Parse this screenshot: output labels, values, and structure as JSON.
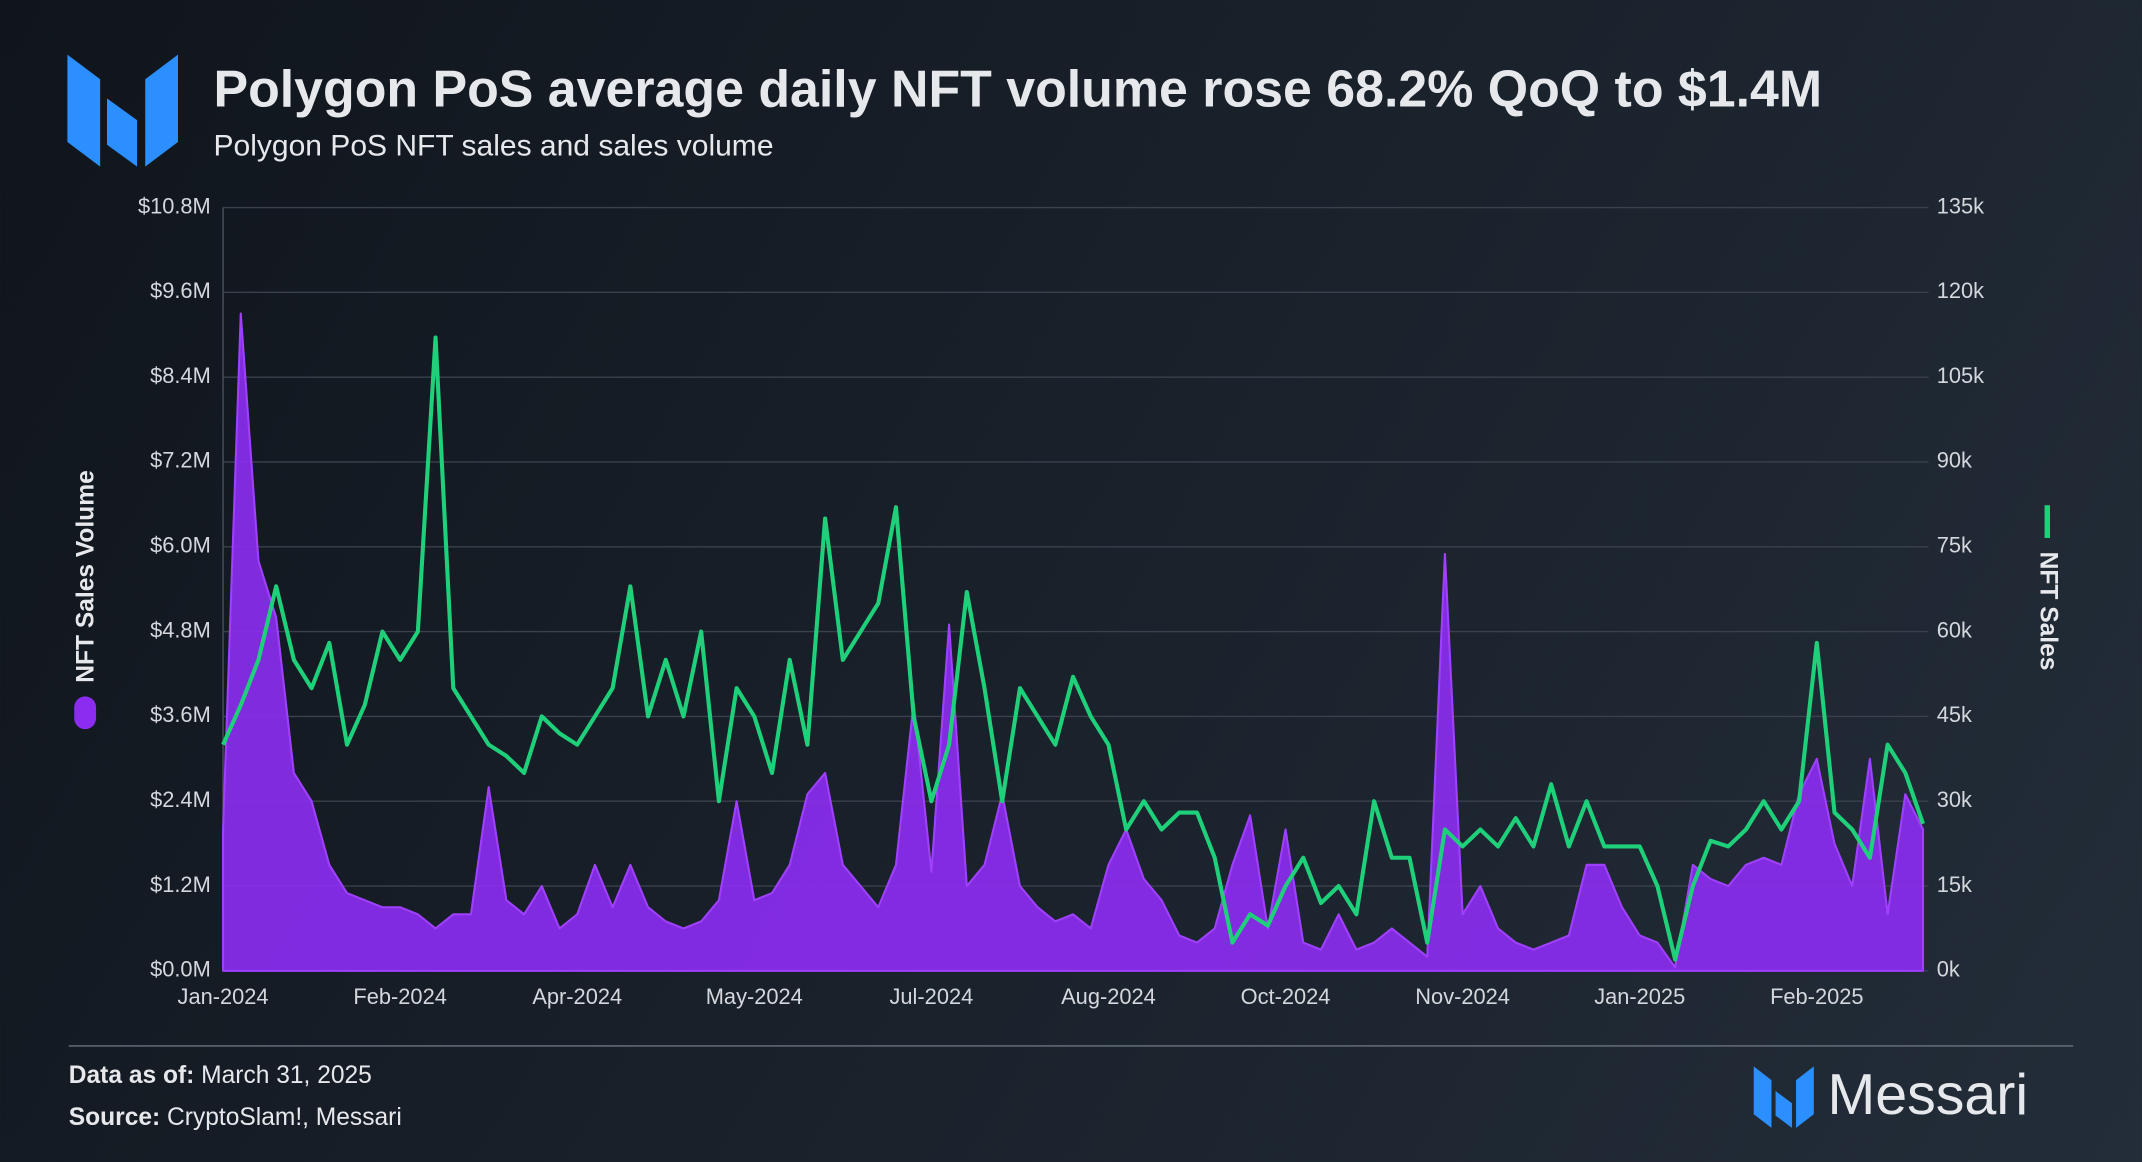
{
  "chart_data": {
    "type": "area-line",
    "title": "Polygon PoS average daily NFT volume rose 68.2% QoQ to $1.4M",
    "subtitle": "Polygon PoS NFT sales and sales volume",
    "categories": [
      "Jan-2024",
      null,
      null,
      null,
      null,
      null,
      null,
      null,
      null,
      null,
      "Feb-2024",
      null,
      null,
      null,
      null,
      null,
      null,
      null,
      null,
      null,
      "Apr-2024",
      null,
      null,
      null,
      null,
      null,
      null,
      null,
      null,
      null,
      "May-2024",
      null,
      null,
      null,
      null,
      null,
      null,
      null,
      null,
      null,
      "Jul-2024",
      null,
      null,
      null,
      null,
      null,
      null,
      null,
      null,
      null,
      "Aug-2024",
      null,
      null,
      null,
      null,
      null,
      null,
      null,
      null,
      null,
      "Oct-2024",
      null,
      null,
      null,
      null,
      null,
      null,
      null,
      null,
      null,
      "Nov-2024",
      null,
      null,
      null,
      null,
      null,
      null,
      null,
      null,
      null,
      "Jan-2025",
      null,
      null,
      null,
      null,
      null,
      null,
      null,
      null,
      null,
      "Feb-2025",
      null,
      null,
      null,
      null,
      null,
      null
    ],
    "series": [
      {
        "name": "NFT Sales Volume",
        "color": "#8b2cf0",
        "axis": "y",
        "values": [
          2.0,
          9.3,
          5.8,
          5.0,
          2.8,
          2.4,
          1.5,
          1.1,
          1.0,
          0.9,
          0.9,
          0.8,
          0.6,
          0.8,
          0.8,
          2.6,
          1.0,
          0.8,
          1.2,
          0.6,
          0.8,
          1.5,
          0.9,
          1.5,
          0.9,
          0.7,
          0.6,
          0.7,
          1.0,
          2.4,
          1.0,
          1.1,
          1.5,
          2.5,
          2.8,
          1.5,
          1.2,
          0.9,
          1.5,
          3.8,
          1.4,
          4.9,
          1.2,
          1.5,
          2.5,
          1.2,
          0.9,
          0.7,
          0.8,
          0.6,
          1.5,
          2.0,
          1.3,
          1.0,
          0.5,
          0.4,
          0.6,
          1.5,
          2.2,
          0.6,
          2.0,
          0.4,
          0.3,
          0.8,
          0.3,
          0.4,
          0.6,
          0.4,
          0.2,
          5.9,
          0.8,
          1.2,
          0.6,
          0.4,
          0.3,
          0.4,
          0.5,
          1.5,
          1.5,
          0.9,
          0.5,
          0.4,
          0.05,
          1.5,
          1.3,
          1.2,
          1.5,
          1.6,
          1.5,
          2.5,
          3.0,
          1.8,
          1.2,
          3.0,
          0.8,
          2.5,
          2.0
        ]
      },
      {
        "name": "NFT Sales",
        "color": "#1fd07a",
        "axis": "y2",
        "values": [
          40000,
          47000,
          55000,
          68000,
          55000,
          50000,
          58000,
          40000,
          47000,
          60000,
          55000,
          60000,
          112000,
          50000,
          45000,
          40000,
          38000,
          35000,
          45000,
          42000,
          40000,
          45000,
          50000,
          68000,
          45000,
          55000,
          45000,
          60000,
          30000,
          50000,
          45000,
          35000,
          55000,
          40000,
          80000,
          55000,
          60000,
          65000,
          82000,
          45000,
          30000,
          40000,
          67000,
          50000,
          30000,
          50000,
          45000,
          40000,
          52000,
          45000,
          40000,
          25000,
          30000,
          25000,
          28000,
          28000,
          20000,
          5000,
          10000,
          8000,
          15000,
          20000,
          12000,
          15000,
          10000,
          30000,
          20000,
          20000,
          5000,
          25000,
          22000,
          25000,
          22000,
          27000,
          22000,
          33000,
          22000,
          30000,
          22000,
          22000,
          22000,
          15000,
          2000,
          15000,
          23000,
          22000,
          25000,
          30000,
          25000,
          30000,
          58000,
          28000,
          25000,
          20000,
          40000,
          35000,
          26000
        ]
      }
    ],
    "ylim": [
      0,
      10.8
    ],
    "yticks": [
      {
        "value": 0,
        "label": "$0.0M"
      },
      {
        "value": 1.2,
        "label": "$1.2M"
      },
      {
        "value": 2.4,
        "label": "$2.4M"
      },
      {
        "value": 3.6,
        "label": "$3.6M"
      },
      {
        "value": 4.8,
        "label": "$4.8M"
      },
      {
        "value": 6.0,
        "label": "$6.0M"
      },
      {
        "value": 7.2,
        "label": "$7.2M"
      },
      {
        "value": 8.4,
        "label": "$8.4M"
      },
      {
        "value": 9.6,
        "label": "$9.6M"
      },
      {
        "value": 10.8,
        "label": "$10.8M"
      }
    ],
    "y2lim": [
      0,
      135000
    ],
    "y2ticks": [
      {
        "value": 0,
        "label": "0k"
      },
      {
        "value": 15000,
        "label": "15k"
      },
      {
        "value": 30000,
        "label": "30k"
      },
      {
        "value": 45000,
        "label": "45k"
      },
      {
        "value": 60000,
        "label": "60k"
      },
      {
        "value": 75000,
        "label": "75k"
      },
      {
        "value": 90000,
        "label": "90k"
      },
      {
        "value": 105000,
        "label": "105k"
      },
      {
        "value": 120000,
        "label": "120k"
      },
      {
        "value": 135000,
        "label": "135k"
      }
    ],
    "grid": true
  },
  "footer": {
    "date_label": "Data as of:",
    "date": "March 31, 2025",
    "source_label": "Source:",
    "source": "CryptoSlam!, Messari",
    "brand": "Messari"
  }
}
